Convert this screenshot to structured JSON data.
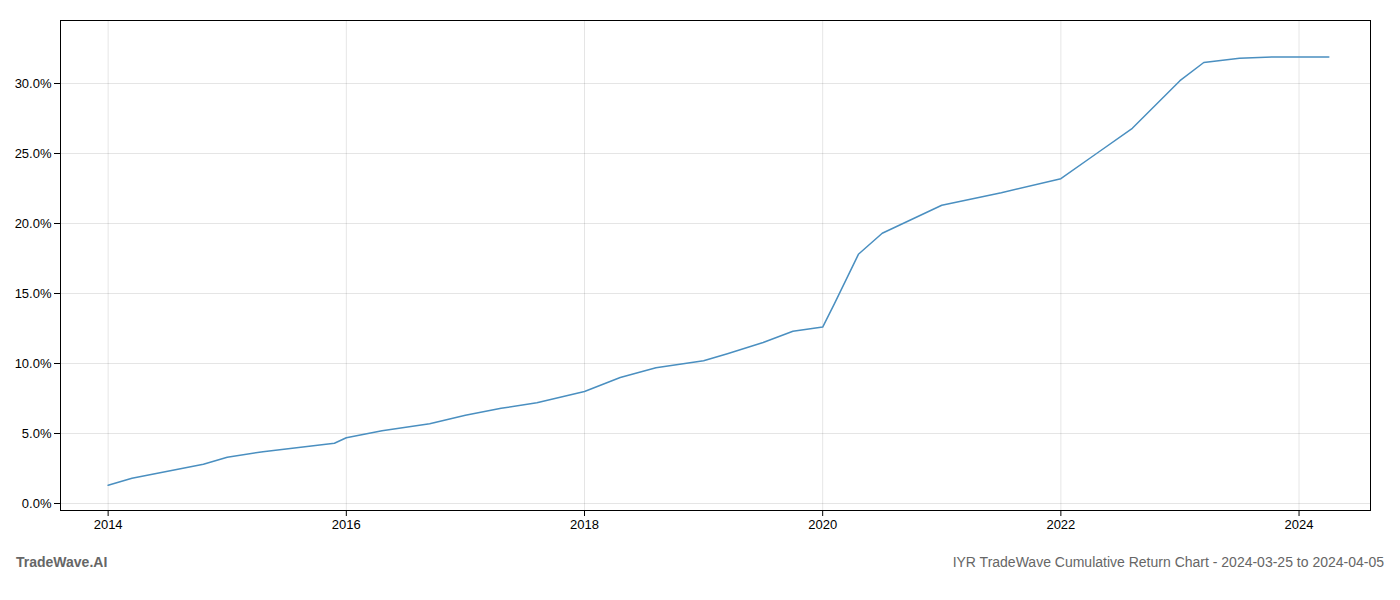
{
  "chart_data": {
    "type": "line",
    "title": "IYR TradeWave Cumulative Return Chart - 2024-03-25 to 2024-04-05",
    "annotations": [
      "TradeWave.AI"
    ],
    "color": "#4a8fc0",
    "grid": true,
    "x": [
      2014.0,
      2014.2,
      2014.5,
      2014.8,
      2015.0,
      2015.3,
      2015.6,
      2015.9,
      2016.0,
      2016.3,
      2016.7,
      2017.0,
      2017.3,
      2017.6,
      2018.0,
      2018.3,
      2018.6,
      2019.0,
      2019.2,
      2019.5,
      2019.75,
      2020.0,
      2020.1,
      2020.3,
      2020.5,
      2021.0,
      2021.5,
      2022.0,
      2022.3,
      2022.6,
      2023.0,
      2023.2,
      2023.5,
      2023.8,
      2024.0,
      2024.25
    ],
    "values": [
      0.013,
      0.018,
      0.023,
      0.028,
      0.033,
      0.037,
      0.04,
      0.043,
      0.047,
      0.052,
      0.057,
      0.063,
      0.068,
      0.072,
      0.08,
      0.09,
      0.097,
      0.102,
      0.107,
      0.115,
      0.123,
      0.126,
      0.143,
      0.178,
      0.193,
      0.213,
      0.222,
      0.232,
      0.25,
      0.268,
      0.302,
      0.315,
      0.318,
      0.319,
      0.319,
      0.319
    ],
    "xlim": [
      2013.6,
      2024.6
    ],
    "ylim": [
      -0.005,
      0.345
    ],
    "xticks": [
      2014,
      2016,
      2018,
      2020,
      2022,
      2024
    ],
    "yticks": [
      {
        "value": 0.0,
        "label": "0.0%"
      },
      {
        "value": 0.05,
        "label": "5.0%"
      },
      {
        "value": 0.1,
        "label": "10.0%"
      },
      {
        "value": 0.15,
        "label": "15.0%"
      },
      {
        "value": 0.2,
        "label": "20.0%"
      },
      {
        "value": 0.25,
        "label": "25.0%"
      },
      {
        "value": 0.3,
        "label": "30.0%"
      }
    ]
  }
}
